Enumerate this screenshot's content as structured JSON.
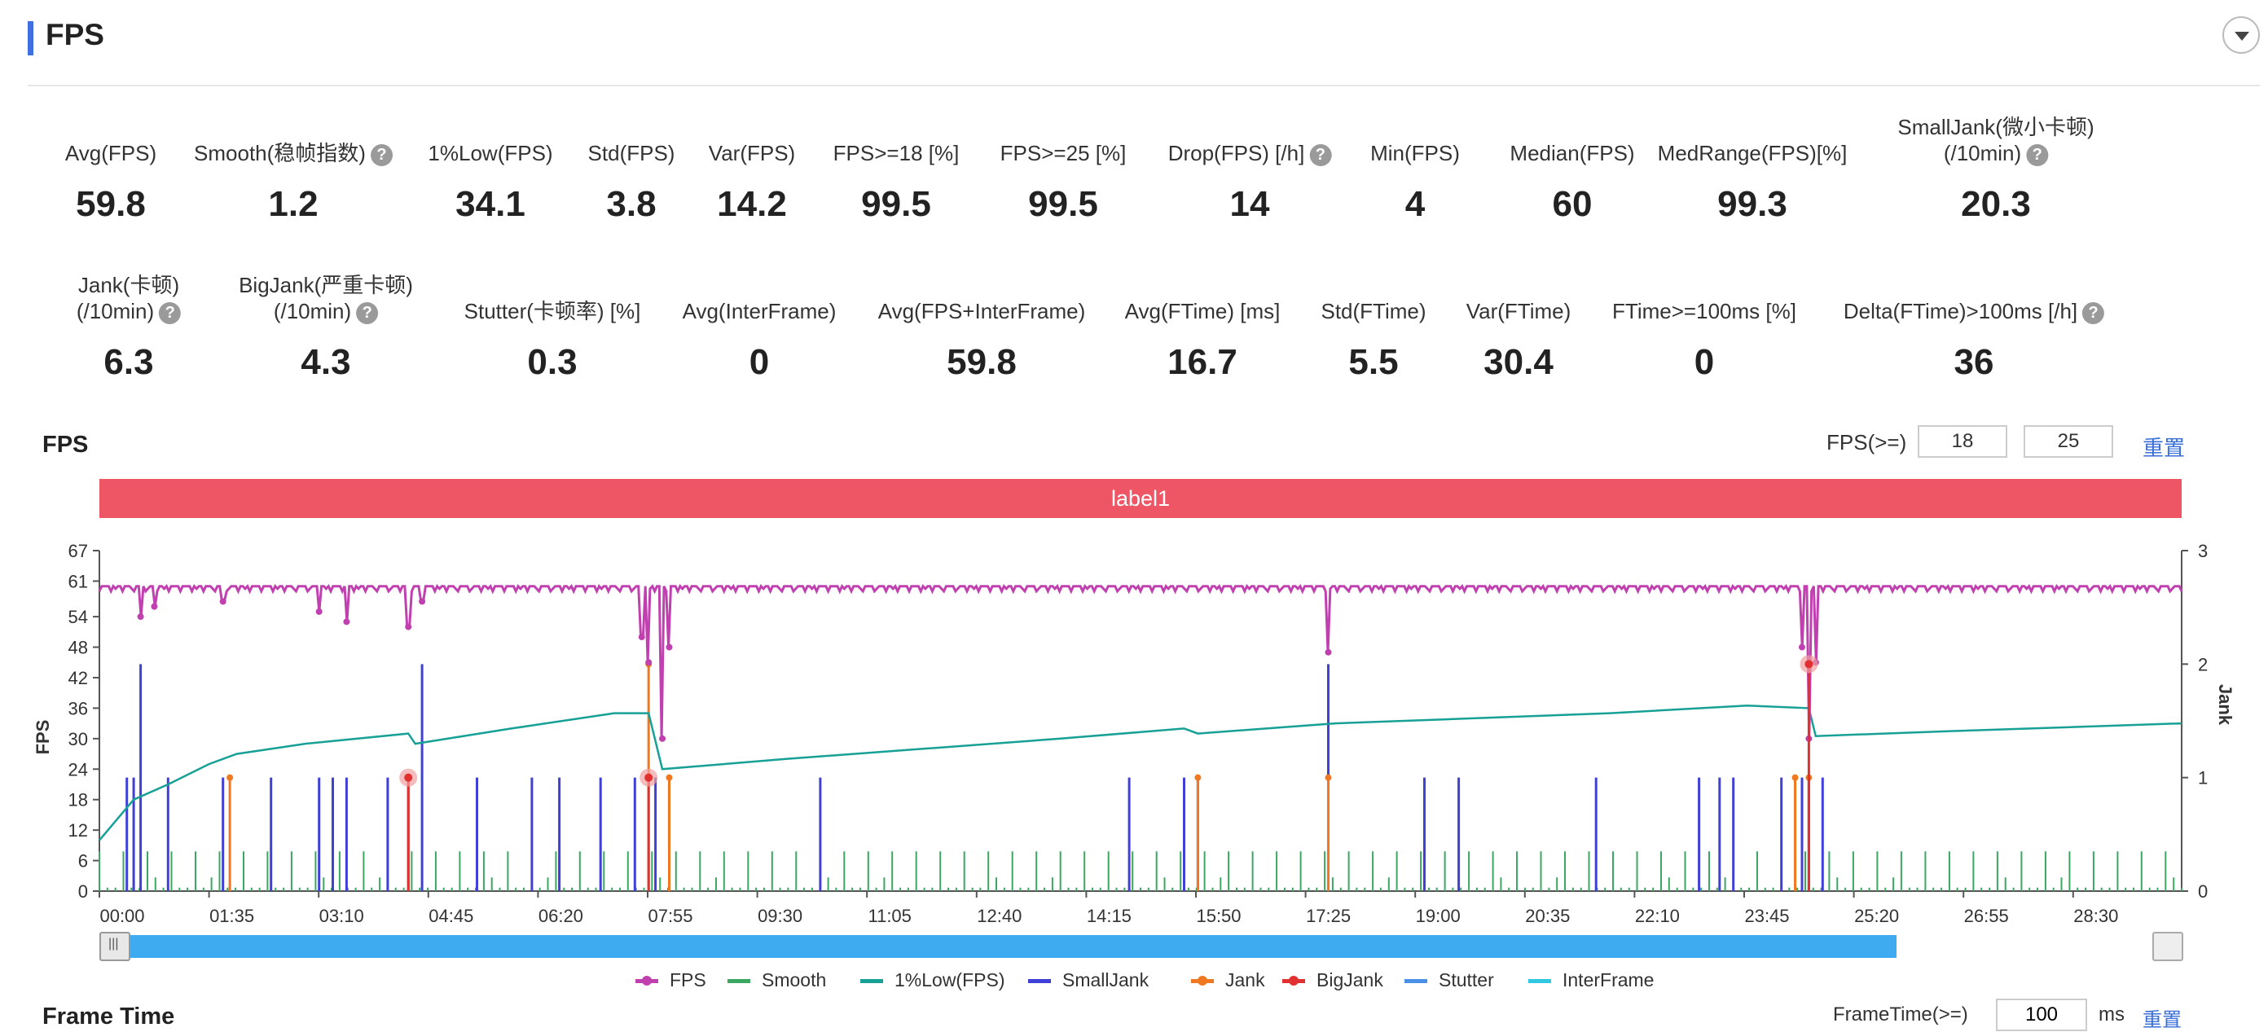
{
  "header": {
    "title": "FPS"
  },
  "stats_row1": [
    {
      "label": "Avg(FPS)",
      "value": "59.8",
      "help": false
    },
    {
      "label": "Smooth(稳帧指数)",
      "value": "1.2",
      "help": true
    },
    {
      "label": "1%Low(FPS)",
      "value": "34.1",
      "help": false
    },
    {
      "label": "Std(FPS)",
      "value": "3.8",
      "help": false
    },
    {
      "label": "Var(FPS)",
      "value": "14.2",
      "help": false
    },
    {
      "label": "FPS>=18 [%]",
      "value": "99.5",
      "help": false
    },
    {
      "label": "FPS>=25 [%]",
      "value": "99.5",
      "help": false
    },
    {
      "label": "Drop(FPS) [/h]",
      "value": "14",
      "help": true
    },
    {
      "label": "Min(FPS)",
      "value": "4",
      "help": false
    },
    {
      "label": "Median(FPS)",
      "value": "60",
      "help": false
    },
    {
      "label": "MedRange(FPS)[%]",
      "value": "99.3",
      "help": false
    },
    {
      "label": "SmallJank(微小卡顿)",
      "label2": "(/10min)",
      "value": "20.3",
      "help": true
    }
  ],
  "stats_row2": [
    {
      "label": "Jank(卡顿)",
      "label2": "(/10min)",
      "value": "6.3",
      "help": true
    },
    {
      "label": "BigJank(严重卡顿)",
      "label2": "(/10min)",
      "value": "4.3",
      "help": true
    },
    {
      "label": "Stutter(卡顿率) [%]",
      "value": "0.3",
      "help": false
    },
    {
      "label": "Avg(InterFrame)",
      "value": "0",
      "help": false
    },
    {
      "label": "Avg(FPS+InterFrame)",
      "value": "59.8",
      "help": false
    },
    {
      "label": "Avg(FTime) [ms]",
      "value": "16.7",
      "help": false
    },
    {
      "label": "Std(FTime)",
      "value": "5.5",
      "help": false
    },
    {
      "label": "Var(FTime)",
      "value": "30.4",
      "help": false
    },
    {
      "label": "FTime>=100ms [%]",
      "value": "0",
      "help": false
    },
    {
      "label": "Delta(FTime)>100ms [/h]",
      "value": "36",
      "help": true
    }
  ],
  "fps_section": {
    "title": "FPS",
    "threshold_label": "FPS(>=)",
    "threshold1": "18",
    "threshold2": "25",
    "reset": "重置",
    "band_label": "label1"
  },
  "legend": [
    {
      "name": "FPS",
      "color": "#c040b0",
      "dot": true
    },
    {
      "name": "Smooth",
      "color": "#3aa860",
      "dot": false
    },
    {
      "name": "1%Low(FPS)",
      "color": "#17a096",
      "dot": false
    },
    {
      "name": "SmallJank",
      "color": "#4040d8",
      "dot": false
    },
    {
      "name": "Jank",
      "color": "#f07820",
      "dot": true
    },
    {
      "name": "BigJank",
      "color": "#e03030",
      "dot": true
    },
    {
      "name": "Stutter",
      "color": "#4a90e8",
      "dot": false
    },
    {
      "name": "InterFrame",
      "color": "#30c8e0",
      "dot": false
    }
  ],
  "frametime_section": {
    "title": "Frame Time",
    "threshold_label": "FrameTime(>=)",
    "threshold": "100",
    "unit": "ms",
    "reset": "重置"
  },
  "chart_data": {
    "type": "line",
    "ylabel": "FPS",
    "y2label": "Jank",
    "yticks": [
      0,
      6,
      12,
      18,
      24,
      30,
      36,
      42,
      48,
      54,
      61,
      67
    ],
    "ylim": [
      0,
      67
    ],
    "y2ticks": [
      0,
      1,
      2,
      3
    ],
    "y2lim": [
      0,
      3
    ],
    "xticks": [
      "00:00",
      "01:35",
      "03:10",
      "04:45",
      "06:20",
      "07:55",
      "09:30",
      "11:05",
      "12:40",
      "14:15",
      "15:50",
      "17:25",
      "19:00",
      "20:35",
      "22:10",
      "23:45",
      "25:20",
      "26:55",
      "28:30"
    ],
    "x_minutes_range": [
      0,
      30.33
    ],
    "fps_baseline": 60,
    "fps_dips_min": [
      [
        0.6,
        54
      ],
      [
        0.8,
        56
      ],
      [
        1.8,
        57
      ],
      [
        3.2,
        55
      ],
      [
        3.6,
        53
      ],
      [
        4.5,
        52
      ],
      [
        4.7,
        57
      ],
      [
        7.9,
        50
      ],
      [
        8.0,
        45
      ],
      [
        8.2,
        30
      ],
      [
        8.3,
        48
      ],
      [
        17.9,
        47
      ],
      [
        24.8,
        48
      ],
      [
        24.9,
        30
      ],
      [
        25.0,
        45
      ]
    ],
    "low1_points_min": [
      [
        0,
        10
      ],
      [
        0.5,
        18
      ],
      [
        1.0,
        21
      ],
      [
        1.6,
        25
      ],
      [
        2.0,
        27
      ],
      [
        3.0,
        29
      ],
      [
        4.5,
        31
      ],
      [
        4.6,
        29
      ],
      [
        6.0,
        32
      ],
      [
        7.5,
        35
      ],
      [
        8.0,
        35
      ],
      [
        8.2,
        24
      ],
      [
        10,
        26
      ],
      [
        12,
        28
      ],
      [
        14,
        30
      ],
      [
        15.8,
        32
      ],
      [
        16,
        31
      ],
      [
        18,
        33
      ],
      [
        20,
        34
      ],
      [
        22,
        35
      ],
      [
        24,
        36.5
      ],
      [
        24.9,
        36
      ],
      [
        25.0,
        30.5
      ],
      [
        27,
        31.5
      ],
      [
        30.33,
        33
      ]
    ],
    "smalljank_min": [
      0.4,
      0.5,
      0.6,
      1.0,
      1.8,
      2.5,
      3.2,
      3.4,
      3.6,
      4.2,
      4.5,
      5.5,
      6.3,
      6.7,
      7.3,
      7.8,
      8.1,
      8.3,
      10.5,
      15,
      15.8,
      16.0,
      17.9,
      19.3,
      19.8,
      21.8,
      23.3,
      23.6,
      23.8,
      24.5,
      24.8,
      24.9,
      25.1
    ],
    "smalljank_tall_min": [
      [
        0.6,
        2
      ],
      [
        4.7,
        2
      ],
      [
        17.9,
        2
      ]
    ],
    "jank_min": [
      [
        1.9,
        1
      ],
      [
        4.5,
        1
      ],
      [
        8.0,
        2
      ],
      [
        8.3,
        1
      ],
      [
        16.0,
        1
      ],
      [
        17.9,
        1
      ],
      [
        24.7,
        1
      ],
      [
        24.9,
        1
      ]
    ],
    "bigjank_min": [
      [
        4.5,
        1
      ],
      [
        8.0,
        1
      ],
      [
        24.9,
        2
      ]
    ]
  }
}
